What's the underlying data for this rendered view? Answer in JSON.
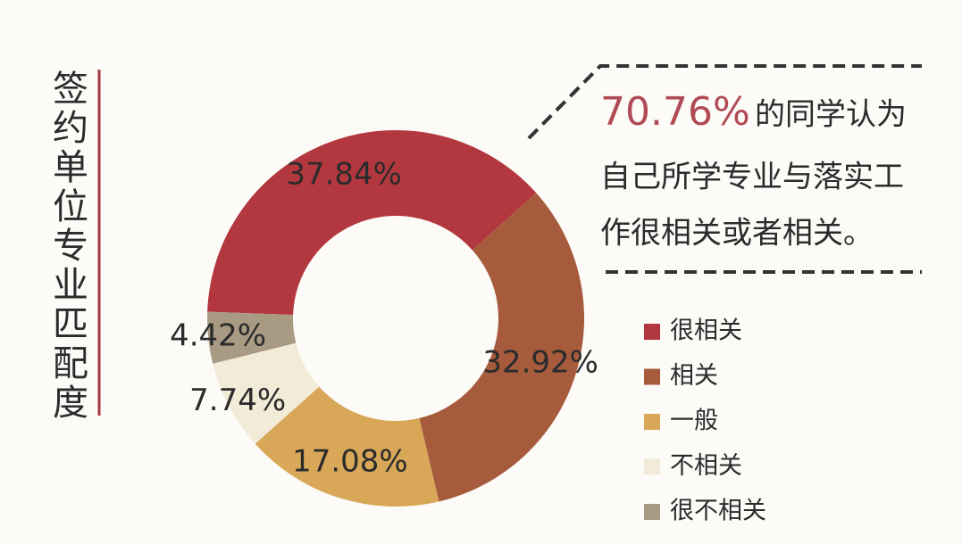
{
  "chart_data": {
    "type": "donut",
    "title": "签约单位专业匹配度",
    "annotation": {
      "highlight": "70.76%",
      "lines": [
        "的同学认为",
        "自己所学专业与落实工",
        "作很相关或者相关。"
      ]
    },
    "categories": [
      "很相关",
      "相关",
      "一般",
      "不相关",
      "很不相关"
    ],
    "values": [
      37.84,
      32.92,
      17.08,
      7.74,
      4.42
    ],
    "value_labels": [
      "37.84%",
      "32.92%",
      "17.08%",
      "7.74%",
      "4.42%"
    ],
    "colors": [
      "#b3373e",
      "#a65b3d",
      "#d8a858",
      "#f1ebd8",
      "#a99b83"
    ],
    "legend": "right"
  }
}
